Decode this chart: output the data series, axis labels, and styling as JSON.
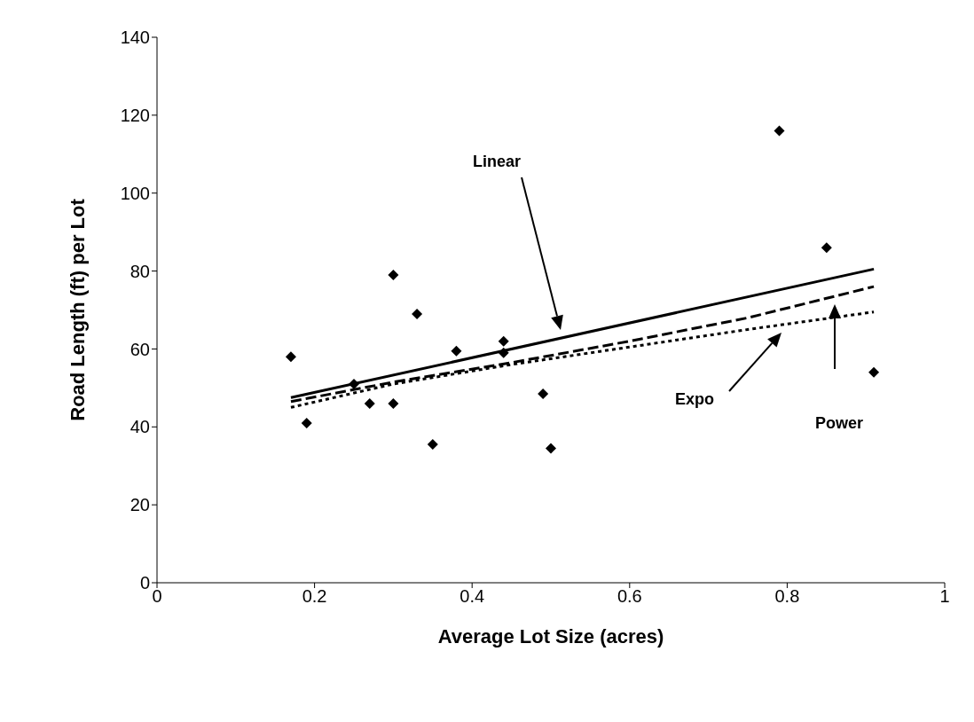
{
  "chart_data": {
    "type": "scatter",
    "xlabel": "Average Lot Size (acres)",
    "ylabel": "Road Length (ft) per Lot",
    "series": [
      {
        "color": "#000000",
        "marker": "diamond",
        "x": [
          0.17,
          0.19,
          0.25,
          0.27,
          0.3,
          0.3,
          0.33,
          0.35,
          0.38,
          0.44,
          0.44,
          0.49,
          0.5,
          0.79,
          0.85,
          0.91
        ],
        "values": [
          58,
          41,
          51,
          46,
          79,
          46,
          69,
          35.5,
          59.5,
          62,
          59,
          48.5,
          34.5,
          116,
          86,
          54
        ]
      },
      {
        "type": "line",
        "color": "#000000",
        "line_style": "solid",
        "x": [
          0.17,
          0.91
        ],
        "values": [
          47.5,
          80.5
        ]
      },
      {
        "type": "line",
        "color": "#000000",
        "line_style": "dashed",
        "x": [
          0.17,
          0.3,
          0.45,
          0.6,
          0.75,
          0.91
        ],
        "values": [
          46.5,
          51.5,
          56.5,
          62,
          68,
          76
        ]
      },
      {
        "type": "line",
        "color": "#000000",
        "line_style": "dotted",
        "x": [
          0.17,
          0.3,
          0.45,
          0.6,
          0.75,
          0.91
        ],
        "values": [
          45,
          51,
          56,
          60.5,
          65,
          69.5
        ]
      }
    ],
    "annotations": [
      "Linear",
      "Expo",
      "Power"
    ],
    "xlim": [
      0,
      1
    ],
    "xticks": [
      0,
      0.2,
      0.4,
      0.6,
      0.8,
      1
    ],
    "ylim": [
      0,
      140
    ],
    "yticks": [
      0,
      20,
      40,
      60,
      80,
      100,
      120,
      140
    ]
  }
}
